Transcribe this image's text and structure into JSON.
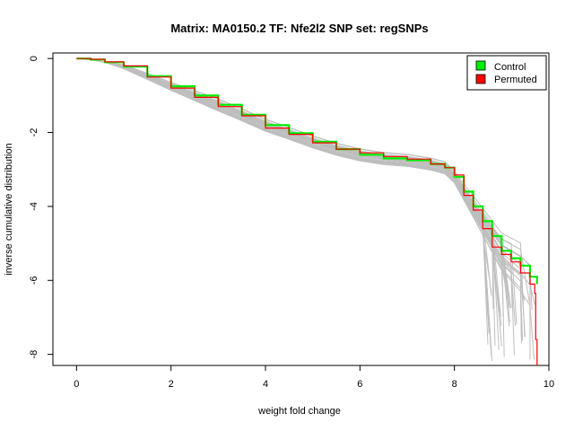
{
  "chart_data": {
    "type": "line",
    "title": "Matrix: MA0150.2 TF: Nfe2l2 SNP set: regSNPs",
    "xlabel": "weight fold change",
    "ylabel": "inverse cumulative distribution",
    "xlim": [
      -0.5,
      10.0
    ],
    "ylim": [
      -8.3,
      0.15
    ],
    "x_ticks": [
      "0",
      "2",
      "4",
      "6",
      "8",
      "10"
    ],
    "y_ticks": [
      "0",
      "-2",
      "-4",
      "-6",
      "-8"
    ],
    "x_tick_values": [
      0,
      2,
      4,
      6,
      8,
      10
    ],
    "y_tick_values": [
      0,
      -2,
      -4,
      -6,
      -8
    ],
    "grid": false,
    "legend_position": "top-right",
    "colors": {
      "control": "#00ee00",
      "permuted": "#ff0000",
      "background": "#bebebe"
    },
    "legend": [
      {
        "label": "Control",
        "color": "#00ee00"
      },
      {
        "label": "Permuted",
        "color": "#ff0000"
      }
    ],
    "series": [
      {
        "name": "Control",
        "color": "#00ee00",
        "x": [
          0,
          0.3,
          0.6,
          1.0,
          1.5,
          2.0,
          2.5,
          3.0,
          3.5,
          4.0,
          4.5,
          5.0,
          5.5,
          6.0,
          6.5,
          7.0,
          7.5,
          7.8,
          8.0,
          8.2,
          8.4,
          8.6,
          8.8,
          9.0,
          9.2,
          9.4,
          9.6,
          9.75
        ],
        "y": [
          0,
          -0.03,
          -0.1,
          -0.22,
          -0.48,
          -0.75,
          -1.0,
          -1.25,
          -1.52,
          -1.8,
          -2.02,
          -2.25,
          -2.45,
          -2.6,
          -2.7,
          -2.75,
          -2.85,
          -2.95,
          -3.2,
          -3.6,
          -4.0,
          -4.4,
          -4.8,
          -5.2,
          -5.4,
          -5.6,
          -5.9,
          -6.1
        ]
      },
      {
        "name": "Permuted",
        "color": "#ff0000",
        "x": [
          0,
          0.3,
          0.6,
          1.0,
          1.5,
          2.0,
          2.5,
          3.0,
          3.5,
          4.0,
          4.5,
          5.0,
          5.5,
          6.0,
          6.5,
          7.0,
          7.5,
          7.8,
          8.0,
          8.2,
          8.4,
          8.6,
          8.8,
          9.0,
          9.2,
          9.4,
          9.6,
          9.7,
          9.72,
          9.75
        ],
        "y": [
          0,
          -0.02,
          -0.09,
          -0.2,
          -0.5,
          -0.8,
          -1.05,
          -1.3,
          -1.55,
          -1.88,
          -2.05,
          -2.28,
          -2.45,
          -2.55,
          -2.65,
          -2.72,
          -2.85,
          -2.95,
          -3.15,
          -3.7,
          -4.1,
          -4.6,
          -5.1,
          -5.3,
          -5.5,
          -5.8,
          -6.1,
          -6.35,
          -7.6,
          -8.3
        ]
      }
    ]
  }
}
